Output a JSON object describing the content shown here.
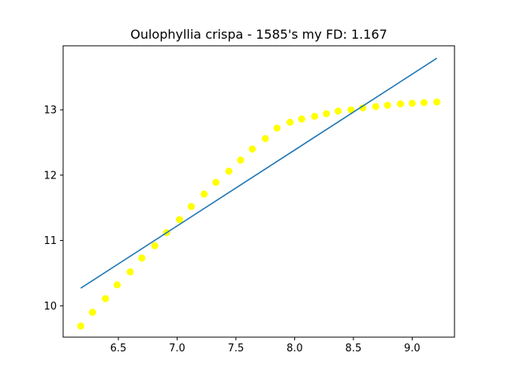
{
  "chart_data": {
    "type": "scatter",
    "title": "Oulophyllia crispa - 1585's my FD: 1.167",
    "xlabel": "",
    "ylabel": "",
    "xlim": [
      6.03,
      9.36
    ],
    "ylim": [
      9.52,
      13.98
    ],
    "grid": false,
    "x_ticks": [
      {
        "value": 6.5,
        "label": "6.5"
      },
      {
        "value": 7.0,
        "label": "7.0"
      },
      {
        "value": 7.5,
        "label": "7.5"
      },
      {
        "value": 8.0,
        "label": "8.0"
      },
      {
        "value": 8.5,
        "label": "8.5"
      },
      {
        "value": 9.0,
        "label": "9.0"
      }
    ],
    "y_ticks": [
      {
        "value": 10,
        "label": "10"
      },
      {
        "value": 11,
        "label": "11"
      },
      {
        "value": 12,
        "label": "12"
      },
      {
        "value": 13,
        "label": "13"
      }
    ],
    "series": [
      {
        "type": "scatter",
        "color": "#ffff00",
        "x": [
          6.18,
          6.28,
          6.39,
          6.49,
          6.6,
          6.7,
          6.81,
          6.91,
          7.02,
          7.12,
          7.23,
          7.33,
          7.44,
          7.54,
          7.64,
          7.75,
          7.85,
          7.96,
          8.06,
          8.17,
          8.27,
          8.37,
          8.48,
          8.58,
          8.69,
          8.79,
          8.9,
          9.0,
          9.1,
          9.21
        ],
        "y": [
          9.69,
          9.9,
          10.11,
          10.32,
          10.52,
          10.73,
          10.92,
          11.12,
          11.32,
          11.52,
          11.71,
          11.89,
          12.06,
          12.23,
          12.4,
          12.56,
          12.72,
          12.81,
          12.86,
          12.9,
          12.94,
          12.98,
          13.0,
          13.03,
          13.05,
          13.07,
          13.09,
          13.1,
          13.11,
          13.12
        ]
      },
      {
        "type": "line",
        "color": "#1f77b4",
        "x": [
          6.18,
          9.21
        ],
        "y": [
          10.27,
          13.79
        ]
      }
    ]
  }
}
